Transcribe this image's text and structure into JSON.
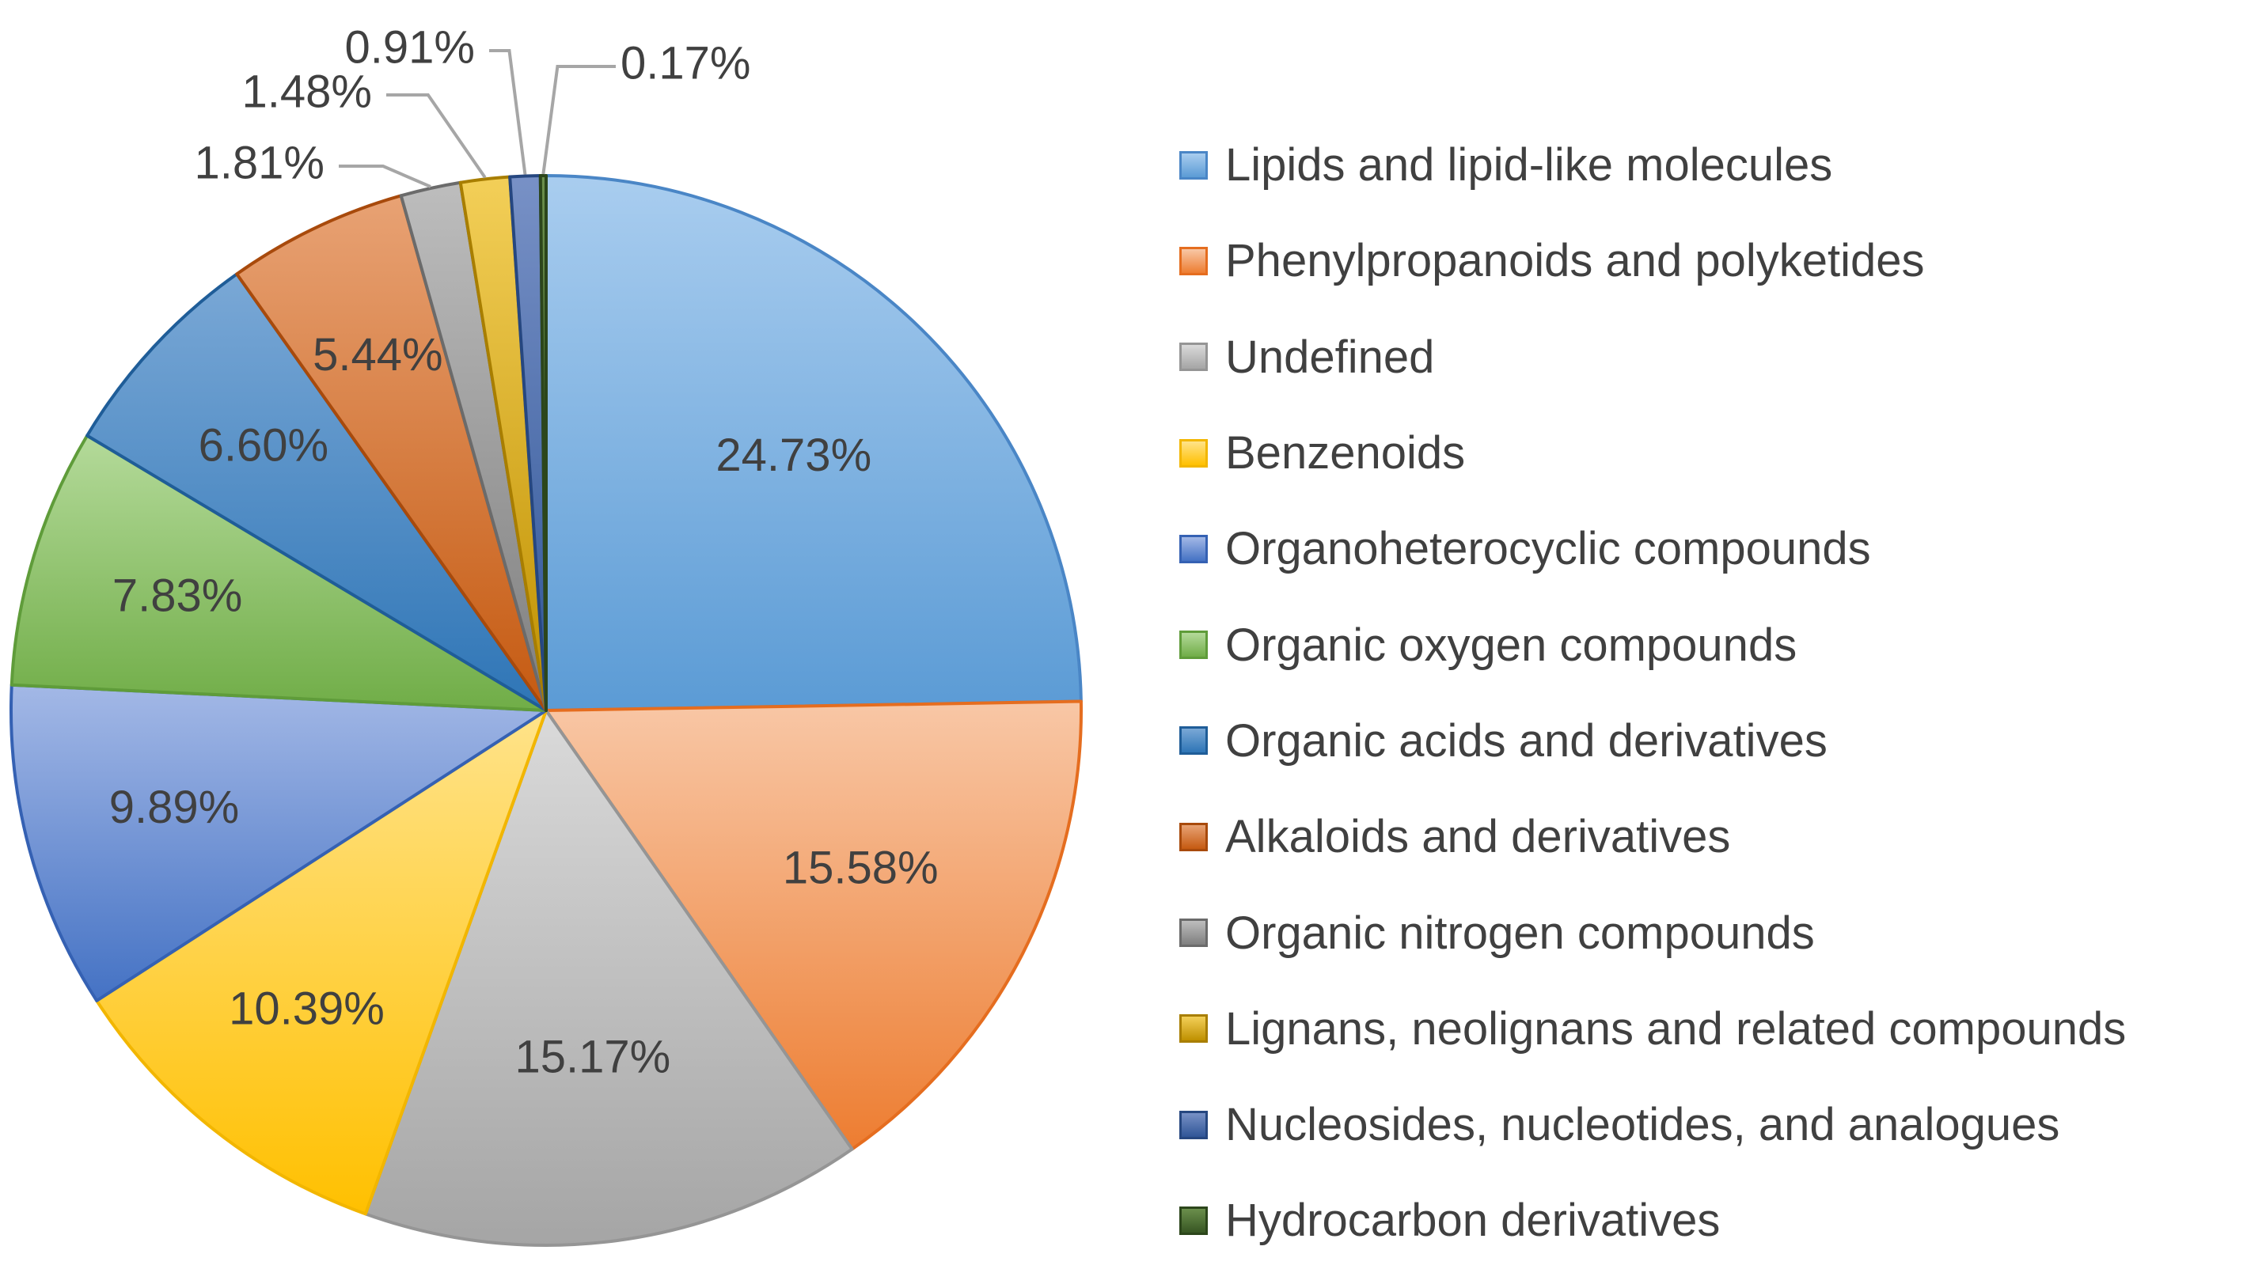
{
  "chart_data": {
    "type": "pie",
    "title": "",
    "slices": [
      {
        "label": "Lipids and lipid-like molecules",
        "value": 24.73,
        "display": "24.73%",
        "color": "#5b9bd5",
        "light": "#a9cdef",
        "dark": "#4a86c6"
      },
      {
        "label": "Phenylpropanoids and polyketides",
        "value": 15.58,
        "display": "15.58%",
        "color": "#ed7d31",
        "light": "#f8c7a6",
        "dark": "#e56d1f"
      },
      {
        "label": "Undefined",
        "value": 15.17,
        "display": "15.17%",
        "color": "#a5a5a5",
        "light": "#dadada",
        "dark": "#959595"
      },
      {
        "label": "Benzenoids",
        "value": 10.39,
        "display": "10.39%",
        "color": "#ffc000",
        "light": "#ffe38a",
        "dark": "#f2b600"
      },
      {
        "label": "Organoheterocyclic compounds",
        "value": 9.89,
        "display": "9.89%",
        "color": "#4472c4",
        "light": "#a3b8e6",
        "dark": "#3561b3"
      },
      {
        "label": "Organic oxygen compounds",
        "value": 7.83,
        "display": "7.83%",
        "color": "#70ad47",
        "light": "#b4da9a",
        "dark": "#5f9c3a"
      },
      {
        "label": "Organic acids and derivatives",
        "value": 6.6,
        "display": "6.60%",
        "color": "#2e75b6",
        "light": "#7aa8d6",
        "dark": "#1f5d98"
      },
      {
        "label": "Alkaloids and derivatives",
        "value": 5.44,
        "display": "5.44%",
        "color": "#c55a11",
        "light": "#e8a274",
        "dark": "#a84a0c"
      },
      {
        "label": "Organic nitrogen compounds",
        "value": 1.81,
        "display": "1.81%",
        "color": "#7f7f7f",
        "light": "#bdbdbd",
        "dark": "#6b6b6b"
      },
      {
        "label": "Lignans, neolignans and related compounds",
        "value": 1.48,
        "display": "1.48%",
        "color": "#bf9000",
        "light": "#f3cf58",
        "dark": "#a87e00"
      },
      {
        "label": "Nucleosides, nucleotides, and analogues",
        "value": 0.91,
        "display": "0.91%",
        "color": "#2f5597",
        "light": "#7891c6",
        "dark": "#264780"
      },
      {
        "label": "Hydrocarbon derivatives",
        "value": 0.17,
        "display": "0.17%",
        "color": "#375623",
        "light": "#6b8f4c",
        "dark": "#2c461b"
      }
    ],
    "legend_placement": "right"
  }
}
